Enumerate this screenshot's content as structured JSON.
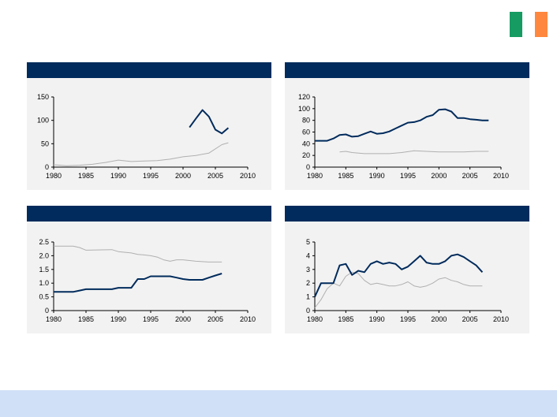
{
  "flag_colors": [
    "#169b62",
    "#ffffff",
    "#ff883e"
  ],
  "colors": {
    "header": "#002b5c",
    "panel_bg": "#f2f2f2",
    "footer": "#cfe0f7",
    "primary_line": "#002b5c",
    "secondary_line": "#b0b0b0"
  },
  "chart_data": [
    {
      "type": "line",
      "title": "",
      "xlim": [
        1980,
        2010
      ],
      "ylim": [
        0,
        150
      ],
      "xticks": [
        "1980",
        "1985",
        "1990",
        "1995",
        "2000",
        "2005",
        "2010"
      ],
      "yticks": [
        "0",
        "50",
        "100",
        "150"
      ],
      "series": [
        {
          "x": [
            2001,
            2002,
            2003,
            2004,
            2005,
            2006,
            2007
          ],
          "values": [
            85,
            104,
            122,
            108,
            80,
            72,
            84
          ]
        },
        {
          "x": [
            1980,
            1982,
            1984,
            1986,
            1988,
            1990,
            1992,
            1994,
            1996,
            1998,
            2000,
            2002,
            2004,
            2006,
            2007
          ],
          "values": [
            5,
            3,
            4,
            6,
            10,
            15,
            12,
            13,
            14,
            17,
            22,
            25,
            30,
            48,
            52
          ]
        }
      ]
    },
    {
      "type": "line",
      "title": "",
      "xlim": [
        1980,
        2010
      ],
      "ylim": [
        0,
        120
      ],
      "xticks": [
        "1980",
        "1985",
        "1990",
        "1995",
        "2000",
        "2005",
        "2010"
      ],
      "yticks": [
        "0",
        "20",
        "40",
        "60",
        "80",
        "100",
        "120"
      ],
      "series": [
        {
          "x": [
            1980,
            1982,
            1983,
            1984,
            1985,
            1986,
            1987,
            1988,
            1989,
            1990,
            1991,
            1992,
            1993,
            1994,
            1995,
            1996,
            1997,
            1998,
            1999,
            2000,
            2001,
            2002,
            2003,
            2004,
            2005,
            2006,
            2007,
            2008
          ],
          "values": [
            45,
            45,
            49,
            55,
            56,
            52,
            53,
            57,
            61,
            57,
            58,
            61,
            66,
            71,
            76,
            77,
            80,
            86,
            89,
            98,
            99,
            95,
            84,
            84,
            82,
            81,
            80,
            80
          ]
        },
        {
          "x": [
            1984,
            1985,
            1986,
            1988,
            1990,
            1992,
            1994,
            1996,
            1998,
            2000,
            2002,
            2004,
            2006,
            2008
          ],
          "values": [
            26,
            27,
            25,
            23,
            23,
            23,
            25,
            28,
            27,
            26,
            26,
            26,
            27,
            27
          ]
        }
      ]
    },
    {
      "type": "line",
      "title": "",
      "xlim": [
        1980,
        2010
      ],
      "ylim": [
        0,
        2.5
      ],
      "xticks": [
        "1980",
        "1985",
        "1990",
        "1995",
        "2000",
        "2005",
        "2010"
      ],
      "yticks": [
        "0",
        "0.5",
        "1.0",
        "1.5",
        "2.0",
        "2.5"
      ],
      "series": [
        {
          "x": [
            1980,
            1983,
            1984,
            1985,
            1989,
            1990,
            1992,
            1993,
            1994,
            1995,
            1998,
            1999,
            2000,
            2001,
            2003,
            2004,
            2005,
            2006
          ],
          "values": [
            0.68,
            0.68,
            0.73,
            0.78,
            0.78,
            0.83,
            0.83,
            1.15,
            1.15,
            1.25,
            1.25,
            1.2,
            1.15,
            1.12,
            1.12,
            1.2,
            1.28,
            1.35
          ]
        },
        {
          "x": [
            1980,
            1983,
            1984,
            1985,
            1989,
            1990,
            1992,
            1993,
            1994,
            1995,
            1996,
            1997,
            1998,
            1999,
            2000,
            2002,
            2004,
            2006
          ],
          "values": [
            2.35,
            2.35,
            2.3,
            2.2,
            2.22,
            2.15,
            2.1,
            2.05,
            2.03,
            2.0,
            1.95,
            1.85,
            1.8,
            1.85,
            1.85,
            1.8,
            1.77,
            1.77
          ]
        }
      ]
    },
    {
      "type": "line",
      "title": "",
      "xlim": [
        1980,
        2010
      ],
      "ylim": [
        0,
        5
      ],
      "xticks": [
        "1980",
        "1985",
        "1990",
        "1995",
        "2000",
        "2005",
        "2010"
      ],
      "yticks": [
        "0",
        "1",
        "2",
        "3",
        "4",
        "5"
      ],
      "series": [
        {
          "x": [
            1980,
            1981,
            1983,
            1984,
            1985,
            1986,
            1987,
            1988,
            1989,
            1990,
            1991,
            1992,
            1993,
            1994,
            1995,
            1996,
            1997,
            1998,
            1999,
            2000,
            2001,
            2002,
            2003,
            2004,
            2005,
            2006,
            2007
          ],
          "values": [
            1.0,
            2.0,
            2.0,
            3.3,
            3.4,
            2.6,
            2.9,
            2.8,
            3.4,
            3.6,
            3.4,
            3.5,
            3.4,
            3.0,
            3.2,
            3.6,
            4.0,
            3.5,
            3.4,
            3.4,
            3.6,
            4.0,
            4.1,
            3.9,
            3.6,
            3.3,
            2.8
          ]
        },
        {
          "x": [
            1980,
            1981,
            1982,
            1983,
            1984,
            1985,
            1986,
            1987,
            1988,
            1989,
            1990,
            1991,
            1992,
            1993,
            1994,
            1995,
            1996,
            1997,
            1998,
            1999,
            2000,
            2001,
            2002,
            2003,
            2004,
            2005,
            2006,
            2007
          ],
          "values": [
            0.2,
            0.8,
            1.6,
            2.0,
            1.8,
            2.5,
            2.8,
            2.7,
            2.2,
            1.9,
            2.0,
            1.9,
            1.8,
            1.8,
            1.9,
            2.1,
            1.8,
            1.7,
            1.8,
            2.0,
            2.3,
            2.4,
            2.2,
            2.1,
            1.9,
            1.8,
            1.8,
            1.8
          ]
        }
      ]
    }
  ]
}
